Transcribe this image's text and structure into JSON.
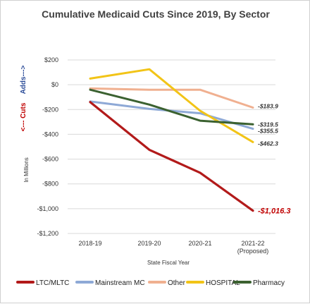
{
  "chart_data": {
    "type": "line",
    "title": "Cumulative Medicaid Cuts Since 2019, By Sector",
    "xlabel": "State Fiscal Year",
    "ylabel": "In Millions",
    "side_labels": {
      "adds": "Adds--->",
      "cuts": "<--- Cuts"
    },
    "categories": [
      {
        "line1": "2018-19",
        "line2": ""
      },
      {
        "line1": "2019-20",
        "line2": ""
      },
      {
        "line1": "2020-21",
        "line2": ""
      },
      {
        "line1": "2021-22",
        "line2": "(Proposed)"
      }
    ],
    "ylim": [
      -1200,
      200
    ],
    "yticks": [
      {
        "v": 200,
        "label": "$200"
      },
      {
        "v": 0,
        "label": "$0"
      },
      {
        "v": -200,
        "label": "-$200"
      },
      {
        "v": -400,
        "label": "-$400"
      },
      {
        "v": -600,
        "label": "-$600"
      },
      {
        "v": -800,
        "label": "-$800"
      },
      {
        "v": -1000,
        "label": "-$1,000"
      },
      {
        "v": -1200,
        "label": "-$1,200"
      }
    ],
    "grid": true,
    "legend_position": "bottom",
    "series": [
      {
        "name": "LTC/MLTC",
        "color": "#b21a1a",
        "values": [
          -140,
          -525,
          -710,
          -1016.3
        ],
        "end_label": "-$1,016.3",
        "end_style": "big"
      },
      {
        "name": "Mainstream MC",
        "color": "#8ea9d6",
        "values": [
          -135,
          -195,
          -230,
          -355.5
        ],
        "end_label": "-$355.5",
        "end_style": "normal"
      },
      {
        "name": "Other",
        "color": "#f0b090",
        "values": [
          -30,
          -40,
          -40,
          -183.9
        ],
        "end_label": "-$183.9",
        "end_style": "normal"
      },
      {
        "name": "HOSPITAL",
        "color": "#f2c417",
        "values": [
          50,
          125,
          -210,
          -462.3
        ],
        "end_label": "-$462.3",
        "end_style": "normal"
      },
      {
        "name": "Pharmacy",
        "color": "#3b6130",
        "values": [
          -40,
          -160,
          -290,
          -319.5
        ],
        "end_label": "-$319.5",
        "end_style": "normal"
      }
    ]
  }
}
